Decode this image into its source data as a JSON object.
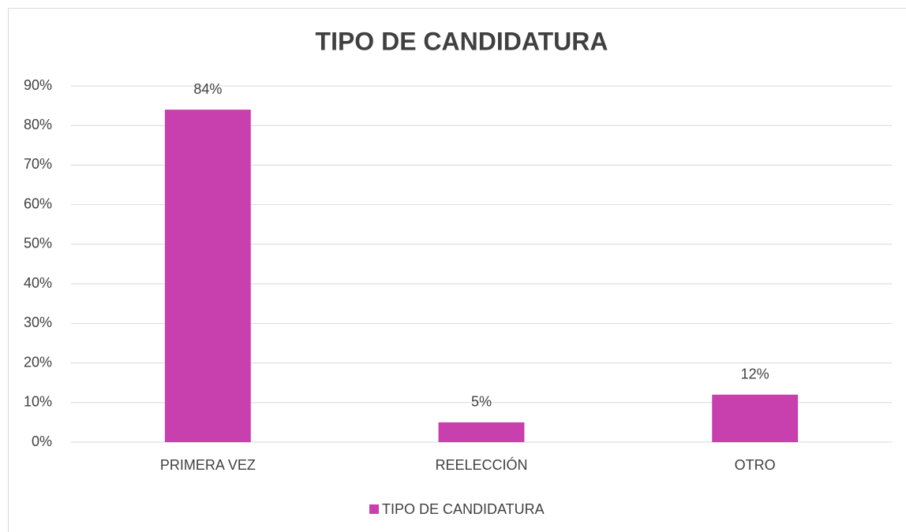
{
  "chart_data": {
    "type": "bar",
    "title": "TIPO DE CANDIDATURA",
    "categories": [
      "PRIMERA VEZ",
      "REELECCIÓN",
      "OTRO"
    ],
    "series": [
      {
        "name": "TIPO DE CANDIDATURA",
        "color": "#c83fae",
        "values": [
          84,
          5,
          12
        ],
        "value_labels": [
          "84%",
          "5%",
          "12%"
        ]
      }
    ],
    "ylim": [
      0,
      90
    ],
    "yticks": [
      {
        "value": 0,
        "label": "0%"
      },
      {
        "value": 10,
        "label": "10%"
      },
      {
        "value": 20,
        "label": "20%"
      },
      {
        "value": 30,
        "label": "30%"
      },
      {
        "value": 40,
        "label": "40%"
      },
      {
        "value": 50,
        "label": "50%"
      },
      {
        "value": 60,
        "label": "60%"
      },
      {
        "value": 70,
        "label": "70%"
      },
      {
        "value": 80,
        "label": "80%"
      },
      {
        "value": 90,
        "label": "90%"
      }
    ],
    "grid": true,
    "legend": "bottom"
  }
}
